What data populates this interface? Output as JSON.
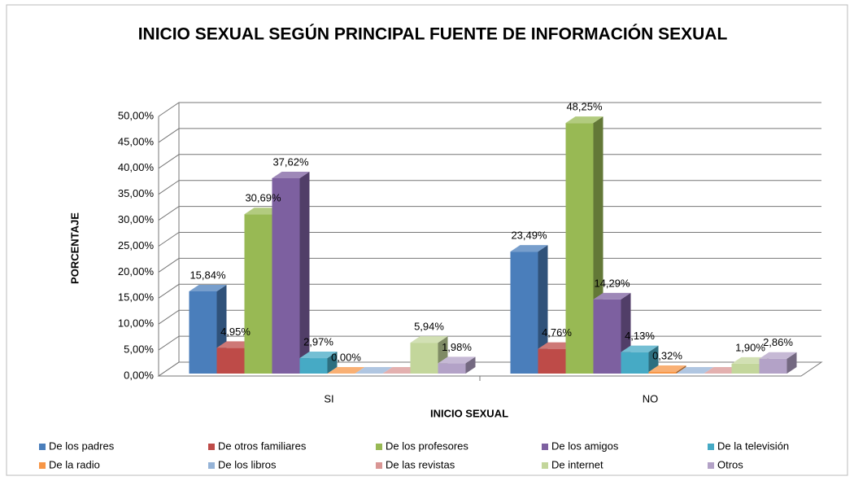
{
  "chart_data": {
    "type": "bar3d",
    "title": "INICIO SEXUAL SEGÚN PRINCIPAL FUENTE DE INFORMACIÓN SEXUAL",
    "x_label": "INICIO SEXUAL",
    "y_label": "PORCENTAJE",
    "categories": [
      "SI",
      "NO"
    ],
    "ylim": [
      0,
      50
    ],
    "yticks": [
      {
        "value": 0,
        "label": "0,00%"
      },
      {
        "value": 5,
        "label": "5,00%"
      },
      {
        "value": 10,
        "label": "10,00%"
      },
      {
        "value": 15,
        "label": "15,00%"
      },
      {
        "value": 20,
        "label": "20,00%"
      },
      {
        "value": 25,
        "label": "25,00%"
      },
      {
        "value": 30,
        "label": "30,00%"
      },
      {
        "value": 35,
        "label": "35,00%"
      },
      {
        "value": 40,
        "label": "40,00%"
      },
      {
        "value": 45,
        "label": "45,00%"
      },
      {
        "value": 50,
        "label": "50,00%"
      }
    ],
    "grid": true,
    "legend": "bottom",
    "series": [
      {
        "name": "De los padres",
        "color": "#4a7ebb",
        "values": [
          15.84,
          23.49
        ],
        "value_labels": [
          "15,84%",
          "23,49%"
        ]
      },
      {
        "name": "De otros familiares",
        "color": "#be4b48",
        "values": [
          4.95,
          4.76
        ],
        "value_labels": [
          "4,95%",
          "4,76%"
        ]
      },
      {
        "name": "De los profesores",
        "color": "#98b954",
        "values": [
          30.69,
          48.25
        ],
        "value_labels": [
          "30,69%",
          "48,25%"
        ]
      },
      {
        "name": "De los amigos",
        "color": "#7d60a0",
        "values": [
          37.62,
          14.29
        ],
        "value_labels": [
          "37,62%",
          "14,29%"
        ]
      },
      {
        "name": "De la televisión",
        "color": "#46aac5",
        "values": [
          2.97,
          4.13
        ],
        "value_labels": [
          "2,97%",
          "4,13%"
        ]
      },
      {
        "name": "De la radio",
        "color": "#f79646",
        "values": [
          0.0,
          0.32
        ],
        "value_labels": [
          "0,00%",
          "0,32%"
        ]
      },
      {
        "name": "De los libros",
        "color": "#95b3d7",
        "values": [
          0,
          0
        ],
        "value_labels": [
          null,
          null
        ]
      },
      {
        "name": "De las revistas",
        "color": "#d99694",
        "values": [
          0,
          0
        ],
        "value_labels": [
          null,
          null
        ]
      },
      {
        "name": "De internet",
        "color": "#c3d69b",
        "values": [
          5.94,
          1.9
        ],
        "value_labels": [
          "5,94%",
          "1,90%"
        ]
      },
      {
        "name": "Otros",
        "color": "#b3a2c7",
        "values": [
          1.98,
          2.86
        ],
        "value_labels": [
          "1,98%",
          "2,86%"
        ]
      }
    ]
  }
}
